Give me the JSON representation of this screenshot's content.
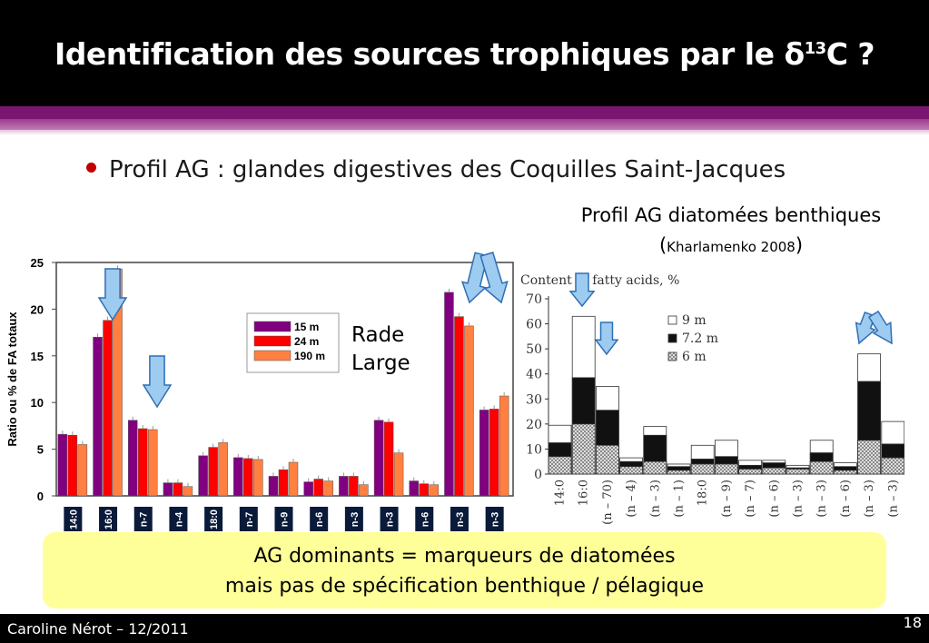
{
  "slide": {
    "title_main": "Identification des sources trophiques par le ",
    "title_delta": "δ",
    "title_sup": "13",
    "title_end": "C ?",
    "bullet": "Profil AG : glandes digestives des Coquilles Saint-Jacques",
    "right_title": "Profil AG diatomées benthiques",
    "right_sub_open": "(",
    "right_sub_ref": "Kharlamenko 2008",
    "right_sub_close": ")",
    "rade_label": "Rade",
    "large_label": "Large",
    "callout_line1": "AG dominants = marqueurs de diatomées",
    "callout_line2": "mais pas de spécification benthique / pélagique",
    "footer_author": "Caroline Nérot – 12/2011",
    "page_number": "18",
    "colors": {
      "header": "#000000",
      "accent_band": "#7a1670",
      "bullet": "#c00000",
      "callout": "#ffff99",
      "arrow_fill": "#9ecbf0",
      "arrow_stroke": "#2e6fb5"
    }
  },
  "chart_data": [
    {
      "type": "bar",
      "ylabel": "Ratio ou % de FA totaux",
      "ylim": [
        0,
        25
      ],
      "yticks": [
        0,
        5,
        10,
        15,
        20,
        25
      ],
      "categories": [
        "14:0",
        "16:0",
        "n-7",
        "n-4",
        "18:0",
        "n-7",
        "n-9",
        "n-6",
        "n-3",
        "n-3",
        "n-6",
        "n-3",
        "n-3"
      ],
      "series": [
        {
          "name": "15 m",
          "color": "#800080",
          "values": [
            6.6,
            17.0,
            8.1,
            1.4,
            4.3,
            4.1,
            2.1,
            1.5,
            2.1,
            8.1,
            1.6,
            21.8,
            9.2
          ]
        },
        {
          "name": "24 m",
          "color": "#ff0000",
          "values": [
            6.5,
            18.8,
            7.2,
            1.4,
            5.2,
            4.0,
            2.8,
            1.8,
            2.1,
            7.9,
            1.3,
            19.2,
            9.3
          ]
        },
        {
          "name": "190 m",
          "color": "#ff8040",
          "values": [
            5.5,
            24.3,
            7.1,
            1.0,
            5.7,
            3.9,
            3.6,
            1.6,
            1.2,
            4.6,
            1.2,
            18.2,
            10.7
          ]
        }
      ],
      "legend": "top-center"
    },
    {
      "type": "bar",
      "title": "Content of fatty acids, %",
      "ylim": [
        0,
        70
      ],
      "yticks": [
        0,
        10,
        20,
        30,
        40,
        50,
        60,
        70
      ],
      "categories": [
        "14:0",
        "16:0",
        "(n – 70)",
        "(n – 4)",
        "(n – 3)",
        "(n – 1)",
        "18:0",
        "(n – 9)",
        "(n – 7)",
        "(n – 6)",
        "(n – 3)",
        "(n – 3)",
        "(n – 6)",
        "(n – 3)",
        "(n – 3)"
      ],
      "series": [
        {
          "name": "9 m",
          "color": "#ffffff",
          "values": [
            19.5,
            63,
            35,
            6.5,
            19,
            4,
            11.5,
            13.5,
            5.5,
            5.5,
            3.5,
            13.5,
            4.5,
            48,
            21
          ]
        },
        {
          "name": "7.2 m",
          "color": "#000000",
          "values": [
            12.5,
            38.5,
            25.5,
            5,
            15.5,
            3,
            6,
            7,
            3.5,
            4.5,
            2.5,
            8.5,
            3,
            37,
            12
          ]
        },
        {
          "name": "6 m",
          "color": "#d0d0d0",
          "values": [
            7,
            20,
            11.5,
            3,
            5,
            1.5,
            4,
            4,
            2,
            2.5,
            2,
            5,
            1.5,
            13.5,
            6.5
          ]
        }
      ],
      "legend": "top-right"
    }
  ]
}
